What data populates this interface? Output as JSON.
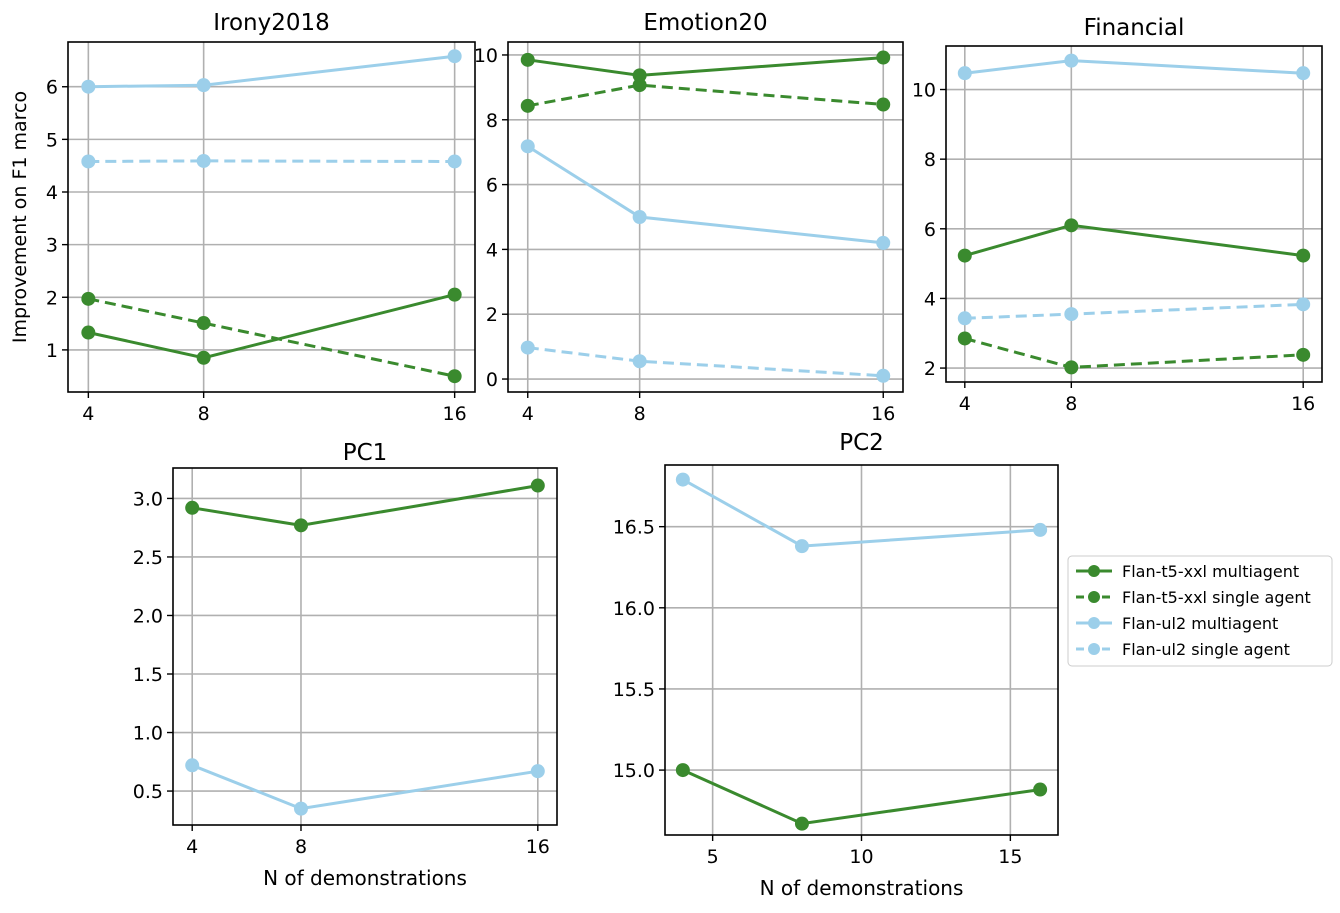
{
  "chart_data": [
    {
      "type": "line",
      "title": "Irony2018",
      "xlabel": "",
      "ylabel": "Improvement on F1 marco",
      "x_scale": "category",
      "x": [
        4,
        8,
        16
      ],
      "x_ticks": [
        4,
        8,
        16
      ],
      "ylim": [
        0.2,
        6.85
      ],
      "y_ticks": [
        1,
        2,
        3,
        4,
        5,
        6
      ],
      "grid": true,
      "series": [
        {
          "name": "Flan-t5-xxl multiagent",
          "color": "#3a8a2e",
          "dash": false,
          "values": [
            1.33,
            0.85,
            2.05
          ]
        },
        {
          "name": "Flan-t5-xxl single agent",
          "color": "#3a8a2e",
          "dash": true,
          "values": [
            1.97,
            1.51,
            0.5
          ]
        },
        {
          "name": "Flan-ul2 multiagent",
          "color": "#9ccfea",
          "dash": false,
          "values": [
            6.0,
            6.03,
            6.58
          ]
        },
        {
          "name": "Flan-ul2 single agent",
          "color": "#9ccfea",
          "dash": true,
          "values": [
            4.58,
            4.59,
            4.58
          ]
        }
      ]
    },
    {
      "type": "line",
      "title": "Emotion20",
      "xlabel": "",
      "ylabel": "",
      "x_scale": "category",
      "x": [
        4,
        8,
        16
      ],
      "x_ticks": [
        4,
        8,
        16
      ],
      "ylim": [
        -0.4,
        10.4
      ],
      "y_ticks": [
        0,
        2,
        4,
        6,
        8,
        10
      ],
      "grid": true,
      "series": [
        {
          "name": "Flan-t5-xxl multiagent",
          "color": "#3a8a2e",
          "dash": false,
          "values": [
            9.85,
            9.37,
            9.92
          ]
        },
        {
          "name": "Flan-t5-xxl single agent",
          "color": "#3a8a2e",
          "dash": true,
          "values": [
            8.43,
            9.07,
            8.47
          ]
        },
        {
          "name": "Flan-ul2 multiagent",
          "color": "#9ccfea",
          "dash": false,
          "values": [
            7.18,
            5.0,
            4.2
          ]
        },
        {
          "name": "Flan-ul2 single agent",
          "color": "#9ccfea",
          "dash": true,
          "values": [
            0.97,
            0.55,
            0.1
          ]
        }
      ]
    },
    {
      "type": "line",
      "title": "Financial",
      "xlabel": "",
      "ylabel": "",
      "x_scale": "category",
      "x": [
        4,
        8,
        16
      ],
      "x_ticks": [
        4,
        8,
        16
      ],
      "ylim": [
        1.6,
        11.25
      ],
      "y_ticks": [
        2,
        4,
        6,
        8,
        10
      ],
      "grid": true,
      "series": [
        {
          "name": "Flan-t5-xxl multiagent",
          "color": "#3a8a2e",
          "dash": false,
          "values": [
            5.23,
            6.1,
            5.23
          ]
        },
        {
          "name": "Flan-t5-xxl single agent",
          "color": "#3a8a2e",
          "dash": true,
          "values": [
            2.85,
            2.02,
            2.38
          ]
        },
        {
          "name": "Flan-ul2 multiagent",
          "color": "#9ccfea",
          "dash": false,
          "values": [
            10.47,
            10.83,
            10.47
          ]
        },
        {
          "name": "Flan-ul2 single agent",
          "color": "#9ccfea",
          "dash": true,
          "values": [
            3.43,
            3.55,
            3.83
          ]
        }
      ]
    },
    {
      "type": "line",
      "title": "PC1",
      "xlabel": "N of demonstrations",
      "ylabel": "",
      "x_scale": "category",
      "x": [
        4,
        8,
        16
      ],
      "x_ticks": [
        4,
        8,
        16
      ],
      "ylim": [
        0.21,
        3.26
      ],
      "y_ticks": [
        "0.5",
        "1.0",
        "1.5",
        "2.0",
        "2.5",
        "3.0"
      ],
      "grid": true,
      "series": [
        {
          "name": "Flan-t5-xxl multiagent",
          "color": "#3a8a2e",
          "dash": false,
          "values": [
            2.92,
            2.77,
            3.11
          ]
        },
        {
          "name": "Flan-ul2 multiagent",
          "color": "#9ccfea",
          "dash": false,
          "values": [
            0.72,
            0.35,
            0.67
          ]
        }
      ]
    },
    {
      "type": "line",
      "title": "PC2",
      "xlabel": "N of demonstrations",
      "ylabel": "",
      "x_scale": "linear",
      "xlim": [
        3.4,
        16.6
      ],
      "x": [
        4,
        8,
        16
      ],
      "x_ticks": [
        5,
        10,
        15
      ],
      "ylim": [
        14.6,
        16.88
      ],
      "y_ticks": [
        "15.0",
        "15.5",
        "16.0",
        "16.5"
      ],
      "grid": true,
      "series": [
        {
          "name": "Flan-t5-xxl multiagent",
          "color": "#3a8a2e",
          "dash": false,
          "values": [
            15.0,
            14.67,
            14.88
          ]
        },
        {
          "name": "Flan-ul2 multiagent",
          "color": "#9ccfea",
          "dash": false,
          "values": [
            16.79,
            16.38,
            16.48
          ]
        }
      ]
    }
  ],
  "legend": {
    "placement": "right",
    "entries": [
      {
        "label": "Flan-t5-xxl multiagent",
        "color": "#3a8a2e",
        "dash": false
      },
      {
        "label": "Flan-t5-xxl single agent",
        "color": "#3a8a2e",
        "dash": true
      },
      {
        "label": "Flan-ul2 multiagent",
        "color": "#9ccfea",
        "dash": false
      },
      {
        "label": "Flan-ul2 single agent",
        "color": "#9ccfea",
        "dash": true
      }
    ]
  }
}
